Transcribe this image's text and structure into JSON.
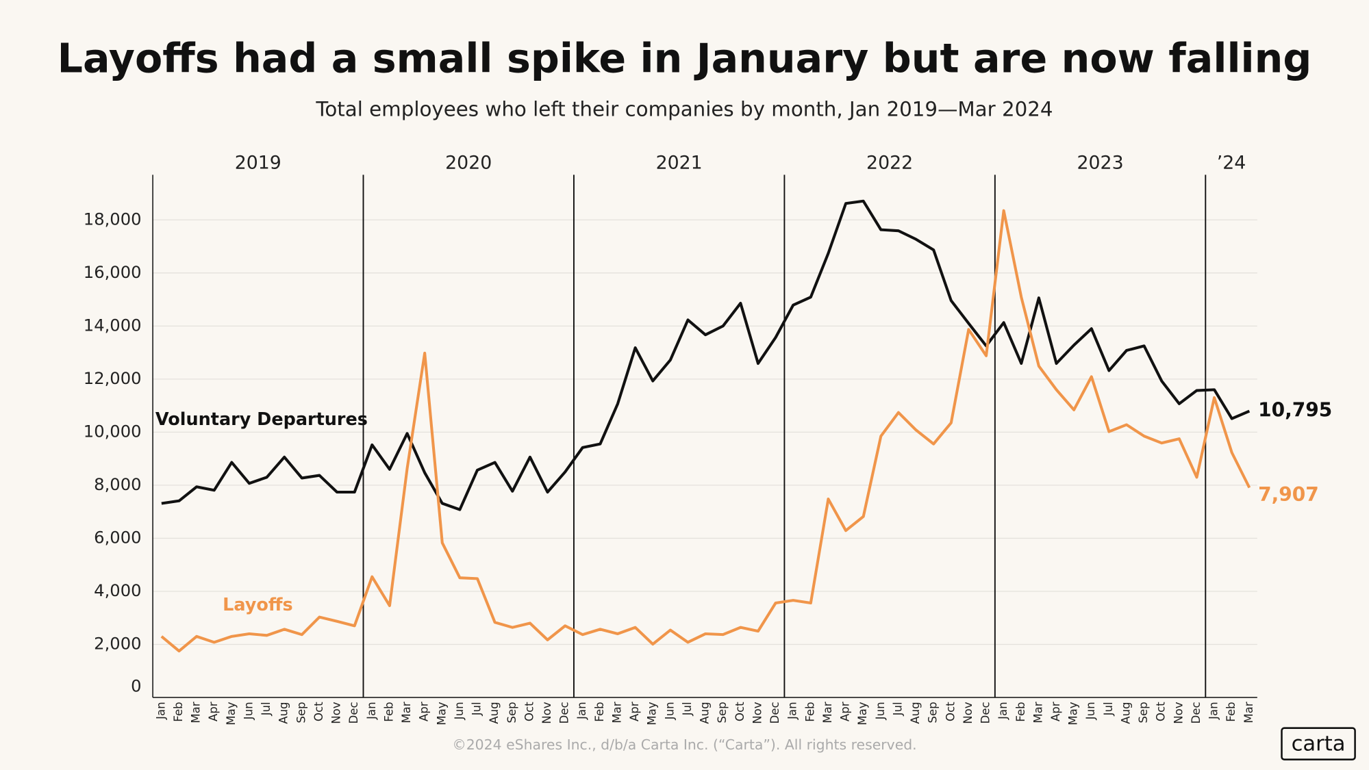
{
  "chart_data": {
    "type": "line",
    "title": "Layoffs had a small spike in January but are now falling",
    "subtitle": "Total employees who left their companies by month, Jan 2019—Mar 2024",
    "years": [
      "2019",
      "2020",
      "2021",
      "2022",
      "2023",
      "’24"
    ],
    "categories": [
      "Jan",
      "Feb",
      "Mar",
      "Apr",
      "May",
      "Jun",
      "Jul",
      "Aug",
      "Sep",
      "Oct",
      "Nov",
      "Dec",
      "Jan",
      "Feb",
      "Mar",
      "Apr",
      "May",
      "Jun",
      "Jul",
      "Aug",
      "Sep",
      "Oct",
      "Nov",
      "Dec",
      "Jan",
      "Feb",
      "Mar",
      "Apr",
      "May",
      "Jun",
      "Jul",
      "Aug",
      "Sep",
      "Oct",
      "Nov",
      "Dec",
      "Jan",
      "Feb",
      "Mar",
      "Apr",
      "May",
      "Jun",
      "Jul",
      "Aug",
      "Sep",
      "Oct",
      "Nov",
      "Dec",
      "Jan",
      "Feb",
      "Mar",
      "Apr",
      "May",
      "Jun",
      "Jul",
      "Aug",
      "Sep",
      "Oct",
      "Nov",
      "Dec",
      "Jan",
      "Feb",
      "Mar"
    ],
    "series": [
      {
        "name": "Voluntary Departures",
        "color": "#111111",
        "values": [
          7315,
          7410,
          7940,
          7810,
          8860,
          8070,
          8300,
          9060,
          8270,
          8370,
          7740,
          7740,
          9520,
          8600,
          9950,
          8470,
          7315,
          7080,
          8570,
          8860,
          7775,
          9060,
          7740,
          8500,
          9420,
          9555,
          11070,
          13180,
          11930,
          12720,
          14230,
          13670,
          14000,
          14860,
          12590,
          13570,
          14790,
          15090,
          16740,
          18620,
          18710,
          17630,
          17590,
          17270,
          16870,
          14960,
          14100,
          13250,
          14130,
          12590,
          15060,
          12590,
          13280,
          13900,
          12320,
          13080,
          13250,
          11930,
          11070,
          11570,
          11600,
          10510,
          10795
        ],
        "value_labels": [
          null,
          null,
          null,
          null,
          null,
          null,
          null,
          null,
          null,
          null,
          null,
          null,
          null,
          null,
          null,
          null,
          null,
          null,
          null,
          null,
          null,
          null,
          null,
          null,
          null,
          null,
          null,
          null,
          null,
          null,
          null,
          null,
          null,
          null,
          null,
          null,
          null,
          null,
          null,
          null,
          null,
          null,
          null,
          null,
          null,
          null,
          null,
          null,
          null,
          null,
          null,
          null,
          null,
          null,
          null,
          null,
          null,
          null,
          null,
          null,
          null,
          null,
          "10,795"
        ]
      },
      {
        "name": "Layoffs",
        "color": "#f0954a",
        "values": [
          2300,
          1750,
          2300,
          2080,
          2300,
          2400,
          2340,
          2570,
          2370,
          3030,
          2870,
          2700,
          4550,
          3460,
          8630,
          12980,
          5830,
          4510,
          4480,
          2830,
          2640,
          2800,
          2170,
          2700,
          2370,
          2570,
          2400,
          2640,
          2010,
          2540,
          2080,
          2400,
          2370,
          2640,
          2500,
          3560,
          3660,
          3560,
          7480,
          6290,
          6820,
          9850,
          10740,
          10080,
          9555,
          10350,
          13870,
          12880,
          18350,
          15090,
          12490,
          11600,
          10840,
          12090,
          10020,
          10280,
          9850,
          9590,
          9750,
          8300,
          11300,
          9230,
          7907
        ],
        "value_labels": [
          null,
          null,
          null,
          null,
          null,
          null,
          null,
          null,
          null,
          null,
          null,
          null,
          null,
          null,
          null,
          null,
          null,
          null,
          null,
          null,
          null,
          null,
          null,
          null,
          null,
          null,
          null,
          null,
          null,
          null,
          null,
          null,
          null,
          null,
          null,
          null,
          null,
          null,
          null,
          null,
          null,
          null,
          null,
          null,
          null,
          null,
          null,
          null,
          null,
          null,
          null,
          null,
          null,
          null,
          null,
          null,
          null,
          null,
          null,
          null,
          null,
          null,
          "7,907"
        ]
      }
    ],
    "ylim": [
      0,
      19700
    ],
    "yticks": [
      0,
      {
        "value": 2000,
        "label": "2,000"
      },
      {
        "value": 4000,
        "label": "4,000"
      },
      {
        "value": 6000,
        "label": "6,000"
      },
      {
        "value": 8000,
        "label": "8,000"
      },
      {
        "value": 10000,
        "label": "10,000"
      },
      {
        "value": 12000,
        "label": "12,000"
      },
      {
        "value": 14000,
        "label": "14,000"
      },
      {
        "value": 16000,
        "label": "16,000"
      },
      {
        "value": 18000,
        "label": "18,000"
      }
    ],
    "grid": true,
    "footer": "©2024 eShares Inc., d/b/a Carta Inc. (“Carta”). All rights reserved.",
    "logo": "carta"
  }
}
